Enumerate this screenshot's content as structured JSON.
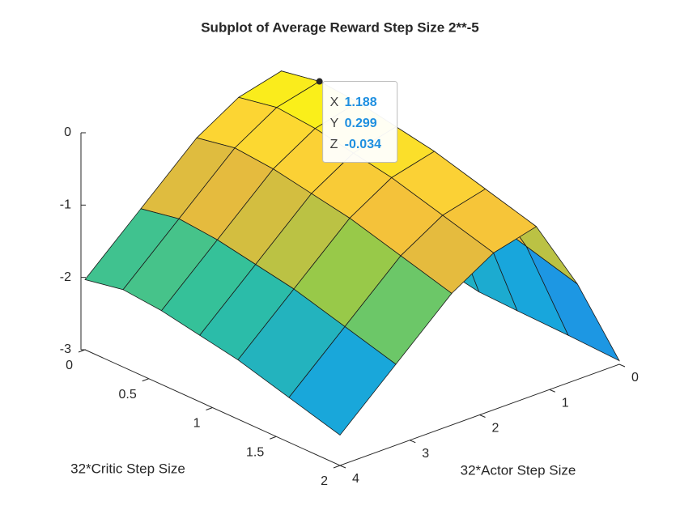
{
  "chart_data": {
    "type": "surface",
    "title": "Subplot of Average Reward Step Size 2**-5",
    "xlabel": "32*Actor Step Size",
    "ylabel": "32*Critic Step Size",
    "x": [
      0,
      0.6,
      1.188,
      1.8,
      2.4,
      3.2,
      4
    ],
    "y": [
      0,
      0.299,
      0.6,
      0.9,
      1.2,
      1.6,
      2
    ],
    "z": [
      [
        -2.83,
        -1.13,
        -0.13,
        -0.28,
        -0.63,
        -1.33,
        -2.03
      ],
      [
        -2.73,
        -1.03,
        -0.034,
        -0.18,
        -0.53,
        -1.23,
        -1.93
      ],
      [
        -2.78,
        -1.08,
        -0.08,
        -0.23,
        -0.58,
        -1.28,
        -1.98
      ],
      [
        -2.88,
        -1.18,
        -0.18,
        -0.33,
        -0.68,
        -1.38,
        -2.08
      ],
      [
        -2.9,
        -1.28,
        -0.28,
        -0.43,
        -0.78,
        -1.48,
        -2.18
      ],
      [
        -2.92,
        -1.48,
        -0.48,
        -0.63,
        -0.98,
        -1.68,
        -2.38
      ],
      [
        -2.95,
        -1.68,
        -0.68,
        -0.83,
        -1.18,
        -1.88,
        -2.58
      ]
    ],
    "xlim": [
      0,
      4
    ],
    "xticks": [
      0,
      1,
      2,
      3,
      4
    ],
    "ylim": [
      0,
      2
    ],
    "yticks": [
      0,
      0.5,
      1,
      1.5,
      2
    ],
    "zlim": [
      -3,
      0
    ],
    "zticks": [
      0,
      -1,
      -2,
      -3
    ],
    "colormap": [
      "#3e26a8",
      "#2c6ef5",
      "#18a6dc",
      "#2ec0a0",
      "#8bcb4b",
      "#f0b93c",
      "#fcd335",
      "#f9fb0e"
    ],
    "datatip": {
      "labels": [
        "X",
        "Y",
        "Z"
      ],
      "values": [
        1.188,
        0.299,
        -0.034
      ]
    }
  }
}
